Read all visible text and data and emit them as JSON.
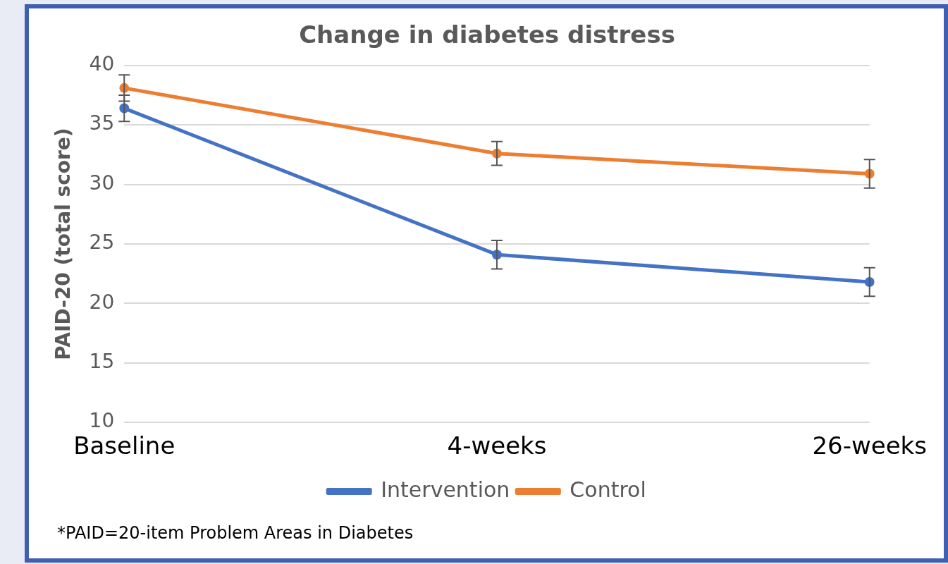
{
  "chart_data": {
    "type": "line",
    "title": "Change in diabetes distress",
    "ylabel": "PAID-20 (total score)",
    "categories": [
      "Baseline",
      "4-weeks",
      "26-weeks"
    ],
    "series": [
      {
        "name": "Intervention",
        "color": "#4472c4",
        "values": [
          36.4,
          24.1,
          21.8
        ],
        "errors": [
          1.1,
          1.2,
          1.2
        ]
      },
      {
        "name": "Control",
        "color": "#ed7d31",
        "values": [
          38.1,
          32.6,
          30.9
        ],
        "errors": [
          1.1,
          1.0,
          1.2
        ]
      }
    ],
    "ylim": [
      10,
      40
    ],
    "yticks": [
      10,
      15,
      20,
      25,
      30,
      35,
      40
    ],
    "grid": "y",
    "legend": "bottom",
    "marker": "circle",
    "line_style": "solid",
    "annotations": [
      "*PAID=20-item Problem Areas in Diabetes"
    ]
  }
}
